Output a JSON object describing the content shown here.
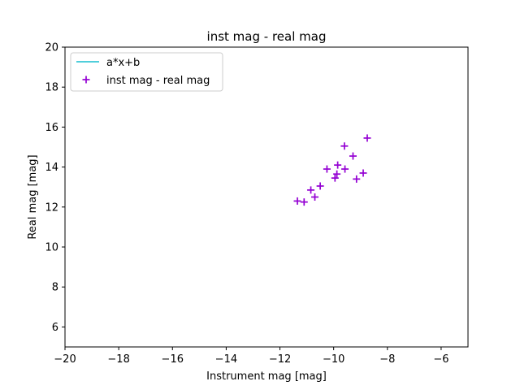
{
  "chart_data": {
    "type": "scatter",
    "title": "inst mag - real mag",
    "xlabel": "Instrument mag [mag]",
    "ylabel": "Real mag [mag]",
    "xlim": [
      -20,
      -5
    ],
    "ylim": [
      5,
      20
    ],
    "xticks": [
      -20,
      -18,
      -16,
      -14,
      -12,
      -10,
      -8,
      -6
    ],
    "yticks": [
      6,
      8,
      10,
      12,
      14,
      16,
      18,
      20
    ],
    "xtick_labels": [
      "−20",
      "−18",
      "−16",
      "−14",
      "−12",
      "−10",
      "−8",
      "−6"
    ],
    "ytick_labels": [
      "6",
      "8",
      "10",
      "12",
      "14",
      "16",
      "18",
      "20"
    ],
    "grid": false,
    "legend_position": "top-left",
    "series": [
      {
        "name": "a*x+b",
        "type": "line",
        "color": "#17becf",
        "x": [],
        "y": []
      },
      {
        "name": "inst mag - real mag",
        "type": "scatter",
        "marker": "+",
        "color": "#9400d3",
        "x": [
          -11.35,
          -11.1,
          -10.85,
          -10.7,
          -10.5,
          -10.25,
          -9.95,
          -9.88,
          -9.85,
          -9.6,
          -9.58,
          -9.28,
          -9.15,
          -8.9,
          -8.75
        ],
        "y": [
          12.3,
          12.25,
          12.85,
          12.5,
          13.05,
          13.9,
          13.45,
          13.65,
          14.1,
          15.05,
          13.9,
          14.55,
          13.4,
          13.7,
          15.45
        ]
      }
    ]
  }
}
